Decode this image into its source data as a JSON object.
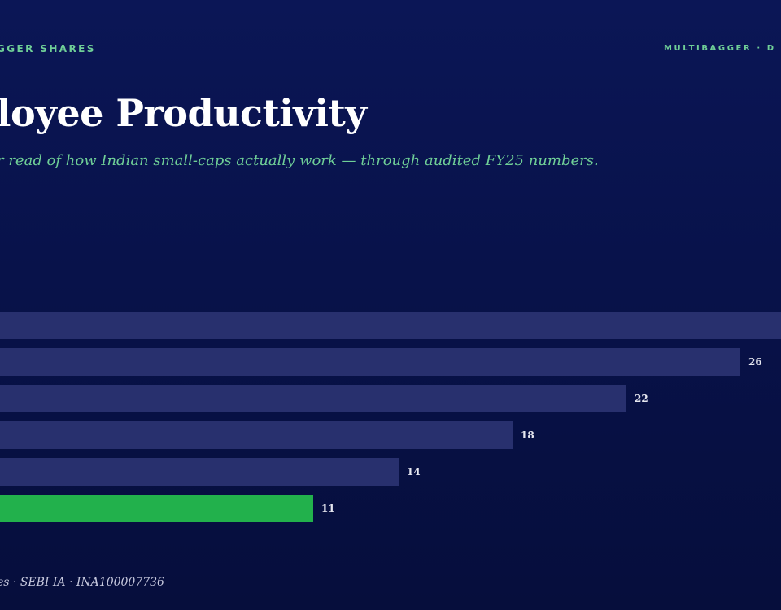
{
  "header": {
    "brand_left": "GGER SHARES",
    "brand_right": "MULTIBAGGER · D"
  },
  "title": "loyee Productivity",
  "subtitle": "r read of how Indian small-caps actually work — through audited FY25 numbers.",
  "footer": "es · SEBI IA · INA100007736",
  "colors": {
    "bar": "#28306e",
    "highlight_bar": "#22b14c",
    "value_label": "#e6e7f0"
  },
  "chart_data": {
    "type": "bar",
    "orientation": "horizontal",
    "values": [
      null,
      26,
      22,
      18,
      14,
      11
    ],
    "value_labels": [
      "",
      "26",
      "22",
      "18",
      "14",
      "11"
    ],
    "highlight_index": 5
  }
}
